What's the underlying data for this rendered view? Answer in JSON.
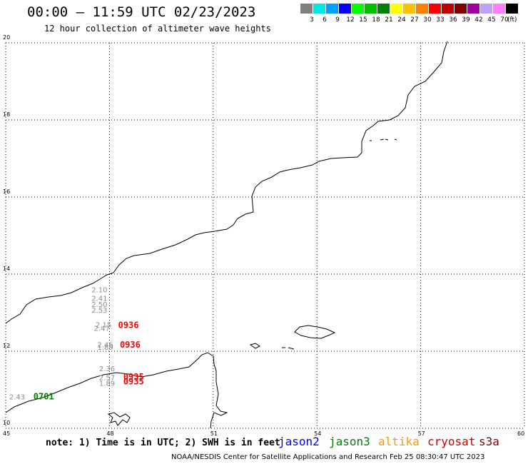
{
  "header": {
    "title": "00:00 – 11:59 UTC 02/23/2023",
    "subtitle": "12 hour collection of altimeter wave heights"
  },
  "legend": {
    "unit": "(ft)",
    "bins": [
      {
        "label": "3",
        "color": "#808080"
      },
      {
        "label": "6",
        "color": "#00e5e5"
      },
      {
        "label": "9",
        "color": "#00a0ff"
      },
      {
        "label": "12",
        "color": "#0000ff"
      },
      {
        "label": "15",
        "color": "#00ff00"
      },
      {
        "label": "18",
        "color": "#00c000"
      },
      {
        "label": "21",
        "color": "#008000"
      },
      {
        "label": "24",
        "color": "#ffff00"
      },
      {
        "label": "27",
        "color": "#ffc000"
      },
      {
        "label": "30",
        "color": "#ff8000"
      },
      {
        "label": "33",
        "color": "#ff0000"
      },
      {
        "label": "36",
        "color": "#c00000"
      },
      {
        "label": "39",
        "color": "#800000"
      },
      {
        "label": "42",
        "color": "#a000a0"
      },
      {
        "label": "45",
        "color": "#c0a0ff"
      },
      {
        "label": "70",
        "color": "#ff80ff"
      },
      {
        "label": "",
        "color": "#000000"
      }
    ]
  },
  "axes": {
    "lat_labels": [
      "20",
      "18",
      "16",
      "14",
      "12",
      "10"
    ],
    "lon_labels": [
      "45",
      "48",
      "51",
      "54",
      "57",
      "60"
    ]
  },
  "swh_values": [
    {
      "value": "2.10",
      "lon": 47.48,
      "lat": 13.53
    },
    {
      "value": "2.41",
      "lon": 47.48,
      "lat": 13.31
    },
    {
      "value": "2.50",
      "lon": 47.48,
      "lat": 13.15
    },
    {
      "value": "2.53",
      "lon": 47.48,
      "lat": 13.0
    },
    {
      "value": "2.15",
      "lon": 47.6,
      "lat": 12.62
    },
    {
      "value": "2.47",
      "lon": 47.55,
      "lat": 12.53
    },
    {
      "value": "2.46",
      "lon": 47.65,
      "lat": 12.1
    },
    {
      "value": "1.89",
      "lon": 47.65,
      "lat": 12.04
    },
    {
      "value": "2.36",
      "lon": 47.7,
      "lat": 11.48
    },
    {
      "value": "2.57",
      "lon": 47.7,
      "lat": 11.25
    },
    {
      "value": "1.89",
      "lon": 47.7,
      "lat": 11.1
    },
    {
      "value": "2.43",
      "lon": 45.1,
      "lat": 10.75
    }
  ],
  "pass_times": [
    {
      "time": "0936",
      "satellite": "cryosat",
      "lon": 48.25,
      "lat": 12.6
    },
    {
      "time": "0936",
      "satellite": "cryosat",
      "lon": 48.3,
      "lat": 12.09
    },
    {
      "time": "0935",
      "satellite": "cryosat",
      "lon": 48.4,
      "lat": 11.26
    },
    {
      "time": "0935",
      "satellite": "cryosat",
      "lon": 48.4,
      "lat": 11.14
    },
    {
      "time": "0701",
      "satellite": "jason3",
      "lon": 45.8,
      "lat": 10.75
    }
  ],
  "footer": {
    "note": "note: 1) Time is in UTC; 2) SWH is in feet",
    "satellites": [
      {
        "name": "jason2",
        "color": "#0000ff"
      },
      {
        "name": "jason3",
        "color": "#008000"
      },
      {
        "name": "altika",
        "color": "#ff9900"
      },
      {
        "name": "cryosat",
        "color": "#cc0000"
      },
      {
        "name": "s3a",
        "color": "#800000"
      }
    ],
    "credit": "NOAA/NESDIS Center for Satellite Applications and Research    Feb 25 08:30:47 UTC 2023"
  }
}
